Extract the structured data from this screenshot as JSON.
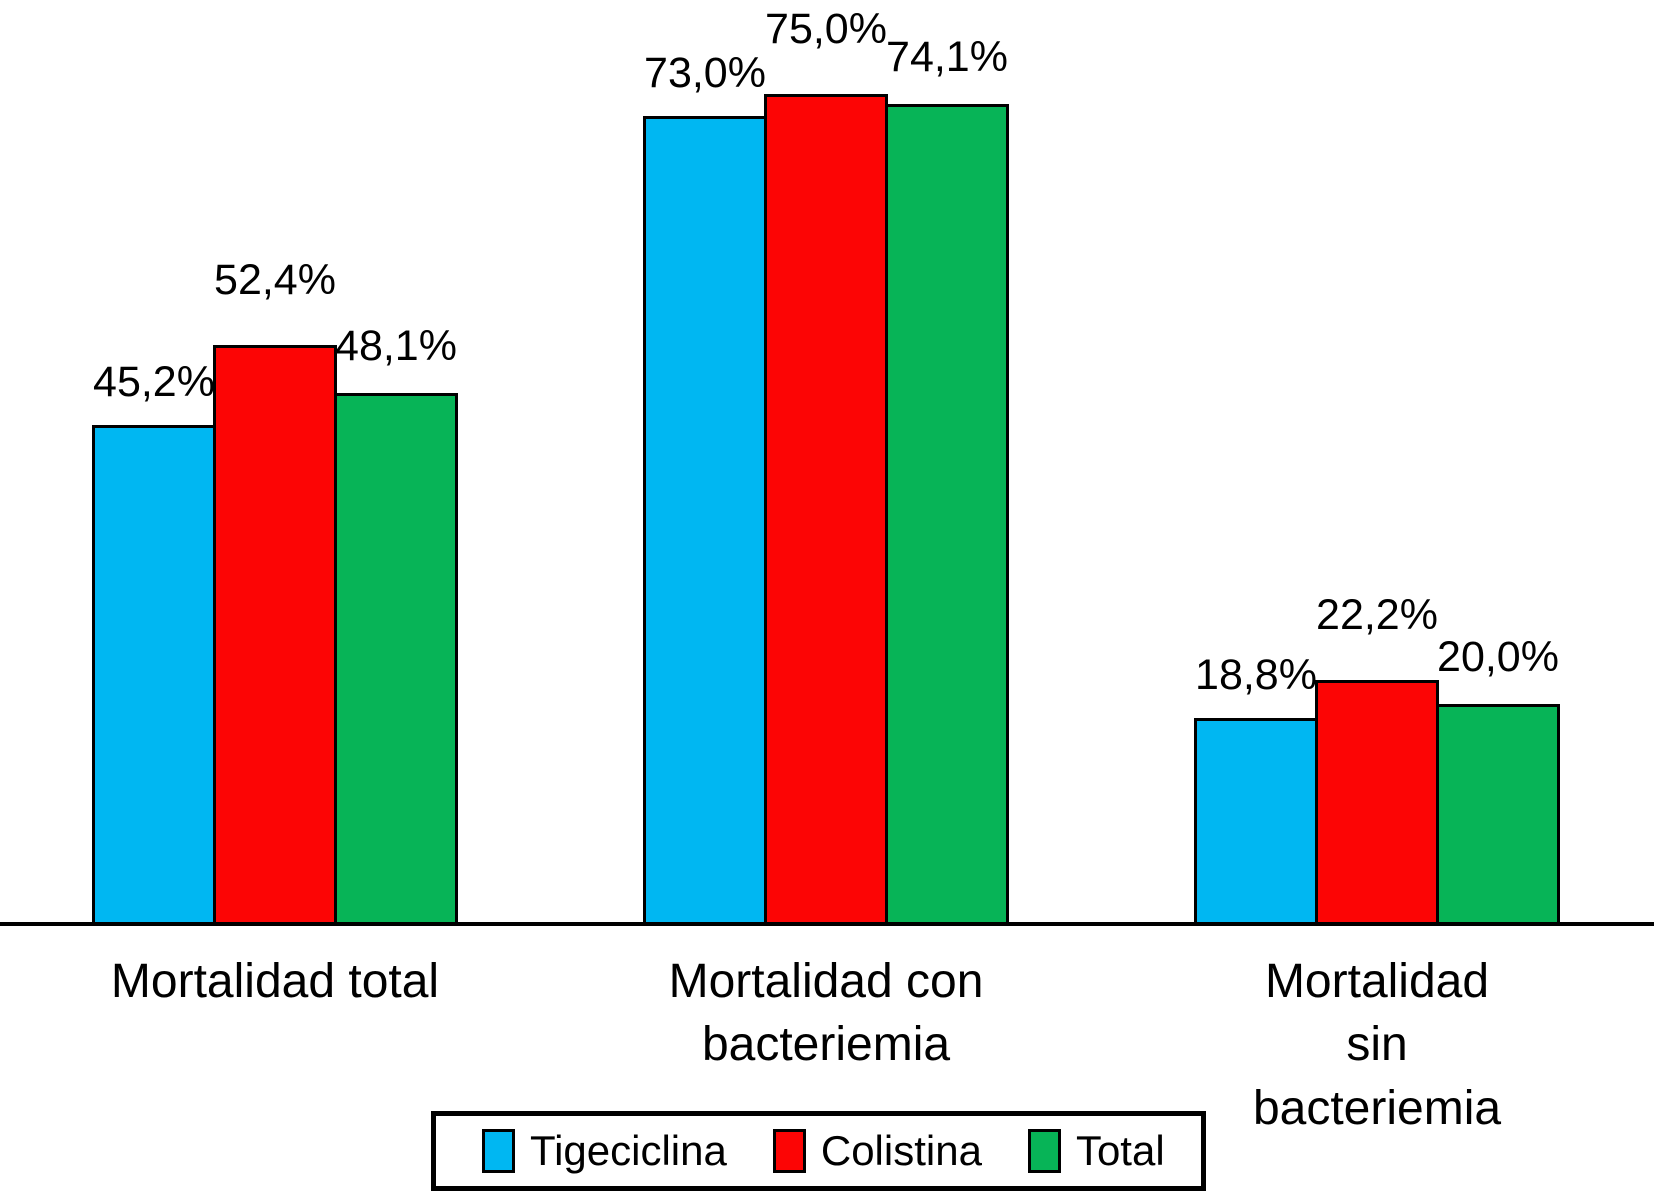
{
  "chart_data": {
    "type": "bar",
    "title": "",
    "xlabel": "",
    "ylabel": "",
    "categories": [
      "Mortalidad total",
      "Mortalidad con\nbacteriemia",
      "Mortalidad sin\nbacteriemia"
    ],
    "series": [
      {
        "name": "Tigeciclina",
        "color": "#00B7F2",
        "values": [
          45.2,
          73.0,
          18.8
        ],
        "labels": [
          "45,2%",
          "73,0%",
          "18,8%"
        ]
      },
      {
        "name": "Colistina",
        "color": "#FC0505",
        "values": [
          52.4,
          75.0,
          22.2
        ],
        "labels": [
          "52,4%",
          "75,0%",
          "22,2%"
        ]
      },
      {
        "name": "Total",
        "color": "#07B457",
        "values": [
          48.1,
          74.1,
          20.0
        ],
        "labels": [
          "48,1%",
          "74,1%",
          "20,0%"
        ]
      }
    ],
    "ylim": [
      0,
      80
    ],
    "grid": false,
    "y_axis_visible": false,
    "legend_position": "bottom-center",
    "decimal_separator": ",",
    "unit": "%",
    "axis_color": "#000000",
    "bar_border_color": "#000000",
    "background": "#FFFFFF"
  }
}
